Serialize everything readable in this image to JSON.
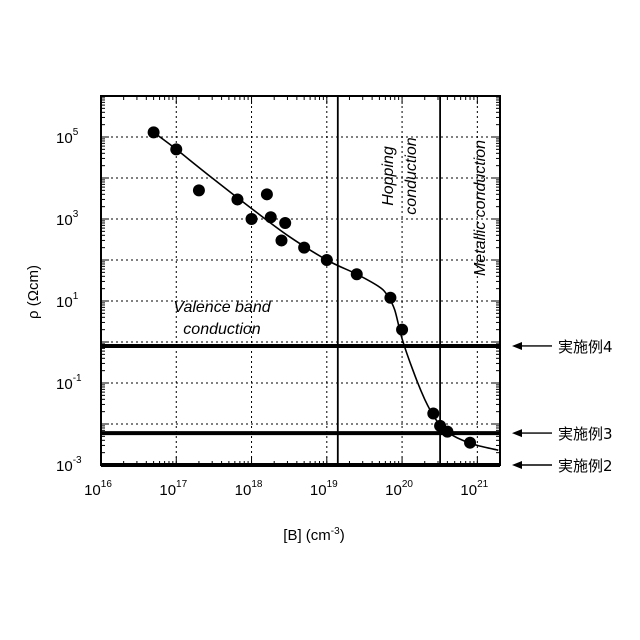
{
  "chart_data": {
    "type": "scatter",
    "xlabel": "[B] (cm",
    "xlabel_sup": "-3",
    "xlabel_close": ")",
    "ylabel": "ρ (Ωcm)",
    "x_scale": "log",
    "y_scale": "log",
    "xlim": [
      1e+16,
      2e+21
    ],
    "ylim": [
      0.001,
      1000000.0
    ],
    "grid": true,
    "x_ticks": [
      {
        "base": "10",
        "exp": "16",
        "value": 1e+16
      },
      {
        "base": "10",
        "exp": "17",
        "value": 1e+17
      },
      {
        "base": "10",
        "exp": "18",
        "value": 1e+18
      },
      {
        "base": "10",
        "exp": "19",
        "value": 1e+19
      },
      {
        "base": "10",
        "exp": "20",
        "value": 1e+20
      },
      {
        "base": "10",
        "exp": "21",
        "value": 1e+21
      }
    ],
    "y_ticks": [
      {
        "base": "10",
        "exp": "-3",
        "value": 0.001
      },
      {
        "base": "10",
        "exp": "-1",
        "value": 0.1
      },
      {
        "base": "10",
        "exp": "1",
        "value": 10
      },
      {
        "base": "10",
        "exp": "3",
        "value": 1000
      },
      {
        "base": "10",
        "exp": "5",
        "value": 100000.0
      }
    ],
    "points": [
      {
        "x": 5e+16,
        "y": 130000
      },
      {
        "x": 1e+17,
        "y": 50000
      },
      {
        "x": 2e+17,
        "y": 5000
      },
      {
        "x": 6.5e+17,
        "y": 3000
      },
      {
        "x": 1e+18,
        "y": 1000
      },
      {
        "x": 1.6e+18,
        "y": 4000
      },
      {
        "x": 1.8e+18,
        "y": 1100
      },
      {
        "x": 2.5e+18,
        "y": 300
      },
      {
        "x": 2.8e+18,
        "y": 800
      },
      {
        "x": 5e+18,
        "y": 200
      },
      {
        "x": 1e+19,
        "y": 100
      },
      {
        "x": 2.5e+19,
        "y": 45
      },
      {
        "x": 7e+19,
        "y": 12
      },
      {
        "x": 1e+20,
        "y": 2
      },
      {
        "x": 2.6e+20,
        "y": 0.018
      },
      {
        "x": 3.2e+20,
        "y": 0.009
      },
      {
        "x": 4e+20,
        "y": 0.0065
      },
      {
        "x": 8e+20,
        "y": 0.0035
      }
    ],
    "fit_curve": [
      {
        "x": 5e+16,
        "y": 130000
      },
      {
        "x": 1e+17,
        "y": 50000
      },
      {
        "x": 3e+17,
        "y": 10000
      },
      {
        "x": 1e+18,
        "y": 1800
      },
      {
        "x": 3e+18,
        "y": 400
      },
      {
        "x": 1e+19,
        "y": 100
      },
      {
        "x": 2.5e+19,
        "y": 45
      },
      {
        "x": 5e+19,
        "y": 22
      },
      {
        "x": 6.5e+19,
        "y": 13
      },
      {
        "x": 8e+19,
        "y": 6
      },
      {
        "x": 1e+20,
        "y": 1.2
      },
      {
        "x": 1.4e+20,
        "y": 0.2
      },
      {
        "x": 2e+20,
        "y": 0.04
      },
      {
        "x": 2.8e+20,
        "y": 0.013
      },
      {
        "x": 4e+20,
        "y": 0.0065
      },
      {
        "x": 6e+20,
        "y": 0.0042
      },
      {
        "x": 1e+21,
        "y": 0.003
      },
      {
        "x": 1.9e+21,
        "y": 0.0023
      }
    ],
    "region_boundaries": [
      1.4e+19,
      3.2e+20
    ],
    "regions": [
      {
        "name": "valence",
        "lines": [
          "Valence band",
          "conduction"
        ]
      },
      {
        "name": "hopping",
        "lines": [
          "Hopping",
          "conduction"
        ]
      },
      {
        "name": "metallic",
        "lines": [
          "Metallic conduction"
        ]
      }
    ],
    "reference_lines": [
      {
        "y": 0.8,
        "label": "実施例4"
      },
      {
        "y": 0.006,
        "label": "実施例3"
      },
      {
        "y": 0.001,
        "label": "実施例2"
      }
    ]
  }
}
